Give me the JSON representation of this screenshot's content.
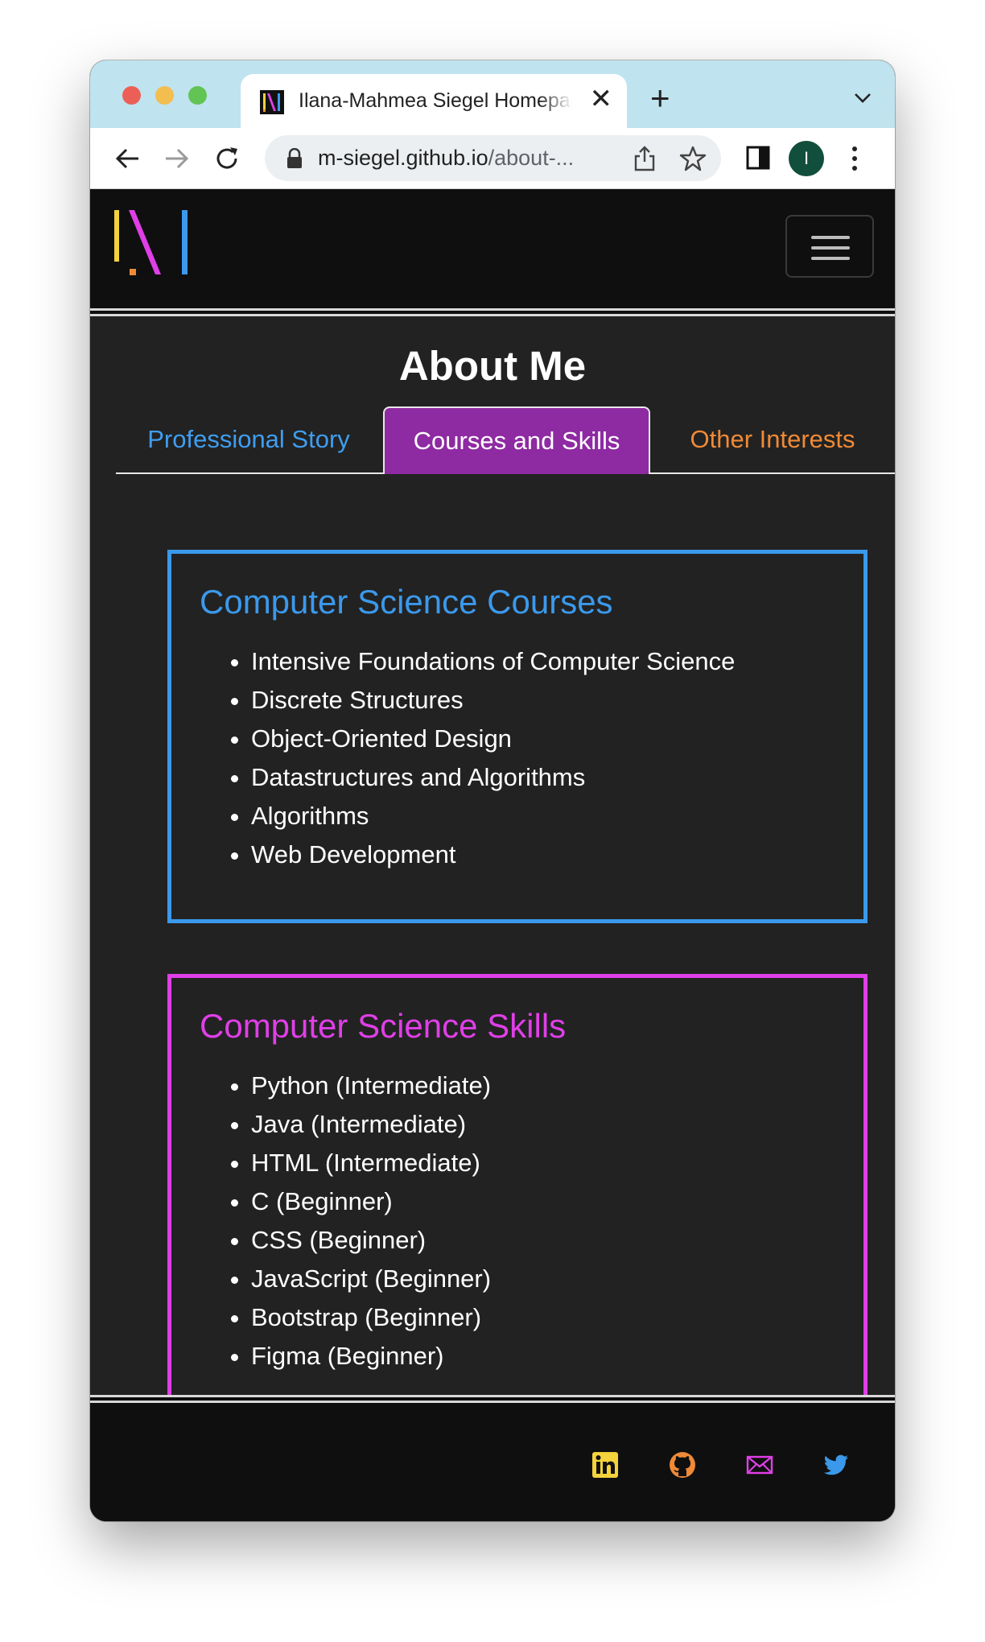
{
  "browser": {
    "tab_title": "Ilana-Mahmea Siegel Homepage",
    "tab_close": "✕",
    "new_tab": "+",
    "url_host": "m-siegel.github.io",
    "url_rest": "/about-...",
    "profile_initial": "I"
  },
  "colors": {
    "blue": "#3b99ec",
    "magenta": "#e03fe8",
    "orange": "#f08a37",
    "yellow": "#f4d23c",
    "active_tab": "#8e2aa2"
  },
  "header": {
    "menu_icon": "hamburger-icon"
  },
  "page": {
    "title": "About Me",
    "tabs": [
      {
        "label": "Professional Story",
        "active": false
      },
      {
        "label": "Courses and Skills",
        "active": true
      },
      {
        "label": "Other Interests",
        "active": false
      }
    ]
  },
  "courses": {
    "heading": "Computer Science Courses",
    "items": [
      "Intensive Foundations of Computer Science",
      "Discrete Structures",
      "Object-Oriented Design",
      "Datastructures and Algorithms",
      "Algorithms",
      "Web Development"
    ]
  },
  "skills": {
    "heading": "Computer Science Skills",
    "items": [
      "Python (Intermediate)",
      "Java (Intermediate)",
      "HTML (Intermediate)",
      "C (Beginner)",
      "CSS (Beginner)",
      "JavaScript (Beginner)",
      "Bootstrap (Beginner)",
      "Figma (Beginner)"
    ]
  },
  "footer": {
    "icons": [
      "linkedin-icon",
      "github-icon",
      "email-icon",
      "twitter-icon"
    ]
  }
}
